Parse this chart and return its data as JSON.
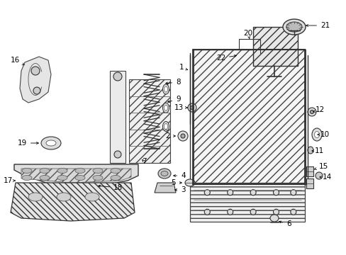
{
  "background_color": "#ffffff",
  "lc": "#333333",
  "tc": "#000000",
  "fs": 7.5,
  "fig_w": 4.89,
  "fig_h": 3.6,
  "dpi": 100
}
